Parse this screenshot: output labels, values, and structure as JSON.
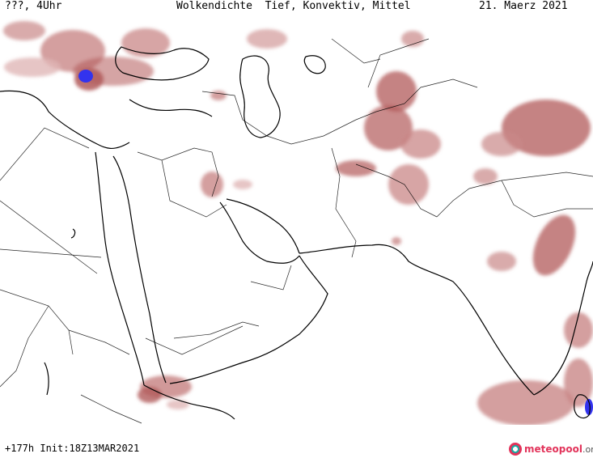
{
  "header": {
    "left": "???, 4Uhr",
    "center": "Wolkendichte  Tief, Konvektiv, Mittel",
    "right": "21. Maerz 2021"
  },
  "footer": {
    "run": "+177h Init:18Z13MAR2021",
    "logo_name": "meteopool",
    "logo_tld": ".org"
  },
  "map": {
    "land_stroke": "#000000",
    "cloud_colors": [
      "#b25a5a",
      "#c98787",
      "#e0b6b6"
    ],
    "heavy_cloud_color": "#3333ee"
  }
}
